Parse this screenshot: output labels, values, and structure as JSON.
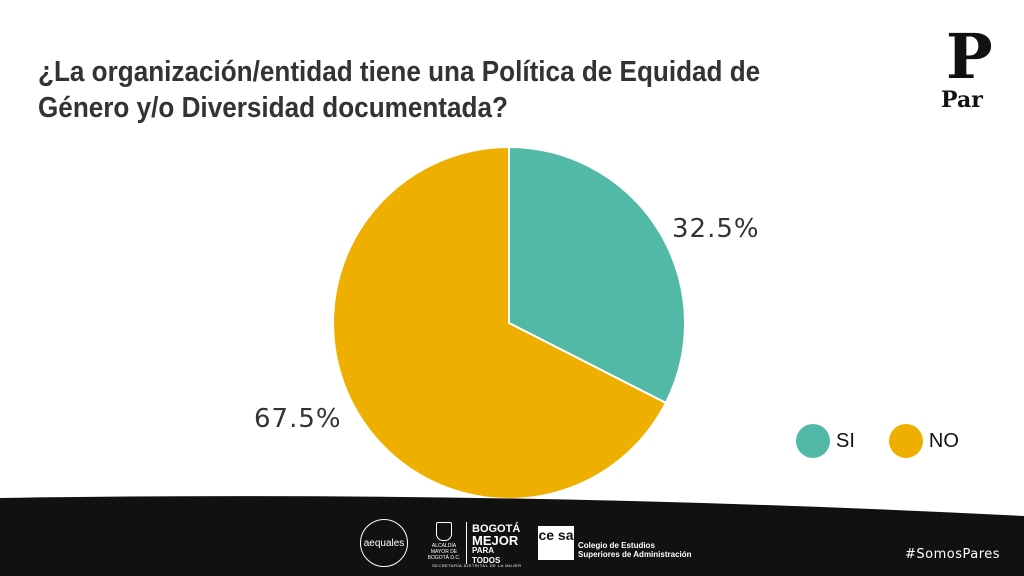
{
  "slide": {
    "title": "¿La organización/entidad tiene una Política de Equidad de Género y/o Diversidad documentada?",
    "brand": {
      "mark": "P",
      "text": "Par",
      "color": "#111111"
    },
    "hashtag": "#SomosPares"
  },
  "chart_data": {
    "type": "pie",
    "title": "¿La organización/entidad tiene una Política de Equidad de Género y/o Diversidad documentada?",
    "categories": [
      "SI",
      "NO"
    ],
    "values": [
      32.5,
      67.5
    ],
    "labels": [
      "32.5%",
      "67.5%"
    ],
    "colors": [
      "#52B9A7",
      "#EEAF00"
    ],
    "start": "12 o'clock, clockwise",
    "legend": {
      "position": "bottom-right",
      "items": [
        "SI",
        "NO"
      ]
    }
  },
  "footer": {
    "background": "#111111",
    "logos": {
      "aequales": "aequales",
      "alcaldia": "ALCALDÍA MAYOR DE BOGOTÁ D.C.",
      "secretaria": "SECRETARÍA DISTRITAL DE LA MUJER",
      "bogota_line1": "BOGOTÁ",
      "bogota_line2": "MEJOR",
      "bogota_line3": "PARA TODOS",
      "cesa_mark": "ce sa",
      "cesa_line1": "Colegio de Estudios",
      "cesa_line2": "Superiores de Administración"
    }
  }
}
